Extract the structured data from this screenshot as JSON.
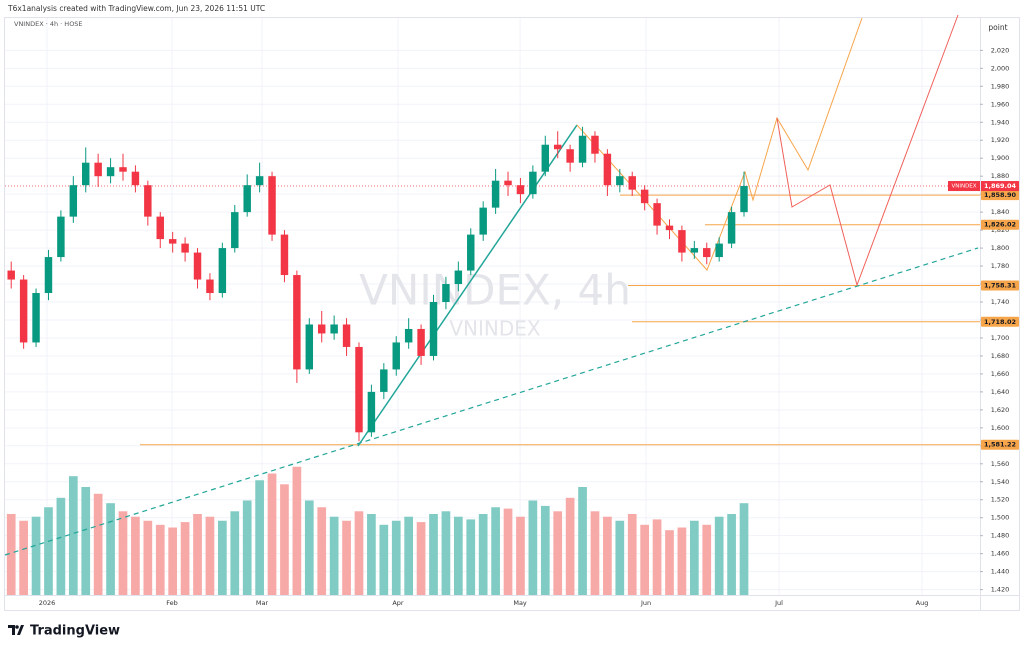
{
  "header": "T6x1analysis created with TradingView.com, Jun 23, 2026 11:51 UTC",
  "logo": "TradingView",
  "chart_data": {
    "type": "candlestick",
    "legend_text": "VNINDEX · 4h · HOSE",
    "watermark": "VNINDEX, 4h",
    "watermark_subtitle": "VNINDEX",
    "y_axis_label": "point",
    "symbol_tag": "VNINDEX",
    "up_color": "#089981",
    "down_color": "#f23645",
    "volume_up_color": "#80cbc4",
    "volume_down_color": "#f7a9a7",
    "level_color": "#f7a54a",
    "grid": true,
    "xlim": [
      -0.5,
      78
    ],
    "xticks": [
      {
        "value": 2.88,
        "label": "2026"
      },
      {
        "value": 12.95,
        "label": "Feb"
      },
      {
        "value": 20.19,
        "label": "Mar"
      },
      {
        "value": 31.14,
        "label": "Apr"
      },
      {
        "value": 40.97,
        "label": "May"
      },
      {
        "value": 51.11,
        "label": "Jun"
      },
      {
        "value": 61.82,
        "label": "Jul"
      },
      {
        "value": 73.33,
        "label": "Aug"
      }
    ],
    "ylim": [
      1414,
      2056
    ],
    "yticks": [
      {
        "value": 1420,
        "label": "1,420"
      },
      {
        "value": 1440,
        "label": "1,440"
      },
      {
        "value": 1460,
        "label": "1,460"
      },
      {
        "value": 1480,
        "label": "1,480"
      },
      {
        "value": 1500,
        "label": "1,500"
      },
      {
        "value": 1520,
        "label": "1,520"
      },
      {
        "value": 1540,
        "label": "1,540"
      },
      {
        "value": 1560,
        "label": "1,560"
      },
      {
        "value": 1580,
        "label": "1,580"
      },
      {
        "value": 1600,
        "label": "1,600"
      },
      {
        "value": 1620,
        "label": "1,620"
      },
      {
        "value": 1640,
        "label": "1,640"
      },
      {
        "value": 1660,
        "label": "1,660"
      },
      {
        "value": 1680,
        "label": "1,680"
      },
      {
        "value": 1700,
        "label": "1,700"
      },
      {
        "value": 1720,
        "label": "1,720"
      },
      {
        "value": 1740,
        "label": "1,740"
      },
      {
        "value": 1760,
        "label": "1,760"
      },
      {
        "value": 1780,
        "label": "1,780"
      },
      {
        "value": 1800,
        "label": "1,800"
      },
      {
        "value": 1820,
        "label": "1,820"
      },
      {
        "value": 1840,
        "label": "1,840"
      },
      {
        "value": 1860,
        "label": "1,860"
      },
      {
        "value": 1880,
        "label": "1,880"
      },
      {
        "value": 1900,
        "label": "1,900"
      },
      {
        "value": 1920,
        "label": "1,920"
      },
      {
        "value": 1940,
        "label": "1,940"
      },
      {
        "value": 1960,
        "label": "1,960"
      },
      {
        "value": 1980,
        "label": "1,980"
      },
      {
        "value": 2000,
        "label": "2,000"
      },
      {
        "value": 2020,
        "label": "2,020"
      }
    ],
    "open": [
      1775,
      1765,
      1695,
      1750,
      1790,
      1835,
      1870,
      1895,
      1880,
      1890,
      1885,
      1870,
      1835,
      1810,
      1805,
      1795,
      1765,
      1750,
      1800,
      1840,
      1870,
      1880,
      1815,
      1770,
      1665,
      1715,
      1705,
      1715,
      1690,
      1595,
      1640,
      1665,
      1695,
      1710,
      1680,
      1740,
      1760,
      1775,
      1815,
      1845,
      1875,
      1870,
      1860,
      1885,
      1915,
      1910,
      1895,
      1925,
      1905,
      1870,
      1880,
      1865,
      1850,
      1825,
      1820,
      1795,
      1800,
      1790,
      1805,
      1840
    ],
    "high": [
      1785,
      1770,
      1755,
      1798,
      1842,
      1880,
      1912,
      1905,
      1900,
      1905,
      1892,
      1875,
      1840,
      1818,
      1812,
      1800,
      1772,
      1806,
      1848,
      1882,
      1895,
      1885,
      1820,
      1775,
      1722,
      1730,
      1725,
      1722,
      1695,
      1648,
      1672,
      1702,
      1722,
      1715,
      1748,
      1768,
      1785,
      1822,
      1852,
      1888,
      1885,
      1878,
      1892,
      1925,
      1930,
      1915,
      1935,
      1930,
      1910,
      1888,
      1885,
      1870,
      1855,
      1832,
      1825,
      1808,
      1806,
      1812,
      1846,
      1885
    ],
    "low": [
      1755,
      1688,
      1690,
      1742,
      1785,
      1828,
      1862,
      1868,
      1872,
      1875,
      1862,
      1825,
      1800,
      1795,
      1785,
      1755,
      1742,
      1745,
      1795,
      1835,
      1862,
      1808,
      1762,
      1650,
      1660,
      1695,
      1698,
      1680,
      1585,
      1590,
      1632,
      1658,
      1688,
      1670,
      1675,
      1732,
      1752,
      1770,
      1808,
      1838,
      1858,
      1850,
      1855,
      1880,
      1900,
      1885,
      1890,
      1895,
      1858,
      1862,
      1858,
      1842,
      1815,
      1810,
      1785,
      1788,
      1782,
      1785,
      1800,
      1835
    ],
    "close": [
      1765,
      1695,
      1750,
      1790,
      1835,
      1870,
      1895,
      1880,
      1890,
      1885,
      1870,
      1835,
      1810,
      1805,
      1795,
      1765,
      1750,
      1800,
      1840,
      1870,
      1880,
      1815,
      1770,
      1665,
      1715,
      1705,
      1715,
      1690,
      1595,
      1640,
      1665,
      1695,
      1710,
      1680,
      1740,
      1760,
      1775,
      1815,
      1845,
      1875,
      1870,
      1860,
      1885,
      1915,
      1910,
      1895,
      1925,
      1905,
      1870,
      1880,
      1865,
      1850,
      1825,
      1820,
      1795,
      1800,
      1790,
      1805,
      1840,
      1869.04
    ],
    "volume": [
      60,
      55,
      58,
      65,
      72,
      88,
      80,
      75,
      68,
      62,
      58,
      55,
      52,
      50,
      54,
      60,
      58,
      55,
      62,
      70,
      85,
      90,
      82,
      95,
      70,
      65,
      58,
      55,
      62,
      60,
      52,
      55,
      58,
      54,
      60,
      62,
      58,
      56,
      60,
      65,
      64,
      58,
      70,
      66,
      62,
      72,
      80,
      62,
      58,
      55,
      60,
      52,
      56,
      48,
      50,
      55,
      52,
      58,
      60,
      68
    ],
    "vlim": [
      0,
      100
    ],
    "last_price": {
      "value": 1869.04,
      "label": "1,869.04"
    },
    "levels": [
      {
        "value": 1858.9,
        "label": "1,858.90"
      },
      {
        "value": 1826.02,
        "label": "1,826.02"
      },
      {
        "value": 1758.31,
        "label": "1,758.31"
      },
      {
        "value": 1718.02,
        "label": "1,718.02"
      },
      {
        "value": 1581.22,
        "label": "1,581.22"
      }
    ]
  }
}
